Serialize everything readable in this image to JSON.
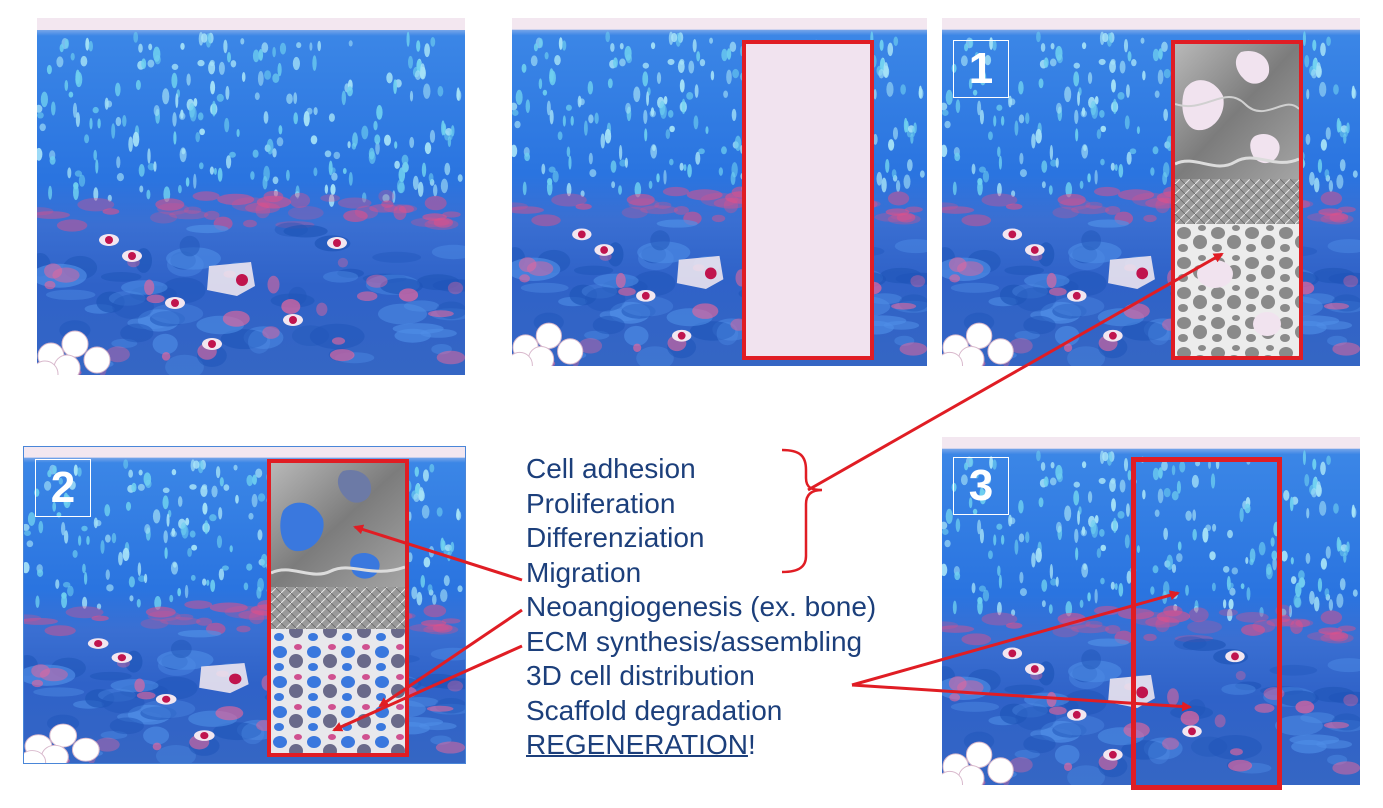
{
  "panels": [
    {
      "id": "panel-original",
      "badge": ""
    },
    {
      "id": "panel-empty-scaffold",
      "badge": ""
    },
    {
      "id": "panel-step-1",
      "badge": "1"
    },
    {
      "id": "panel-step-2",
      "badge": "2"
    },
    {
      "id": "panel-step-3",
      "badge": "3"
    }
  ],
  "process_steps": [
    "Cell adhesion",
    "Proliferation",
    "Differenziation",
    "Migration",
    "Neoangiogenesis (ex. bone)",
    "ECM synthesis/assembling",
    "3D cell distribution",
    "Scaffold degradation"
  ],
  "final_step": {
    "word": "REGENERATION",
    "suffix": "!"
  },
  "colors": {
    "tissue_blue": "#2e6fd8",
    "tissue_cyan": "#6fd0f0",
    "tissue_pink": "#e0508a",
    "highlight_red": "#e01d24",
    "text_navy": "#1c3f7b",
    "scaffold_fill": "#f1e3ef"
  }
}
